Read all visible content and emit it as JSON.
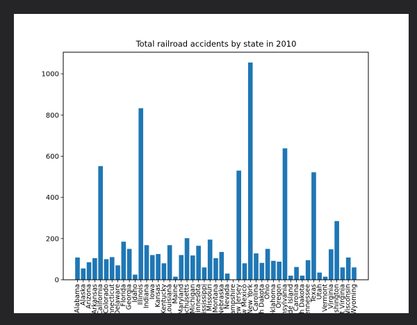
{
  "chart_data": {
    "type": "bar",
    "title": "Total railroad accidents by state in 2010",
    "xlabel": "",
    "ylabel": "",
    "ylim": [
      0,
      1105
    ],
    "yticks": [
      0,
      200,
      400,
      600,
      800,
      1000
    ],
    "grid": false,
    "bar_color": "#1f77b4",
    "categories": [
      "Alabama",
      "Alaska",
      "Arizona",
      "Arkansas",
      "California",
      "Colorado",
      "Connecticut",
      "Delaware",
      "Florida",
      "Georgia",
      "Idaho",
      "Illinois",
      "Indiana",
      "Iowa",
      "Kansas",
      "Kentucky",
      "Louisiana",
      "Maine",
      "Maryland",
      "Massachusetts",
      "Michigan",
      "Minnesota",
      "Mississippi",
      "Missouri",
      "Montana",
      "Nebraska",
      "Nevada",
      "New Hampshire",
      "New Jersey",
      "New Mexico",
      "New York",
      "North Carolina",
      "North Dakota",
      "Ohio",
      "Oklahoma",
      "Oregon",
      "Pennsylvania",
      "Rhode Island",
      "South Carolina",
      "South Dakota",
      "Tennessee",
      "Texas",
      "Utah",
      "Vermont",
      "Virginia",
      "Washington",
      "West Virginia",
      "Wisconsin",
      "Wyoming"
    ],
    "values": [
      108,
      55,
      85,
      105,
      552,
      100,
      110,
      70,
      185,
      150,
      25,
      833,
      168,
      120,
      125,
      80,
      168,
      15,
      120,
      202,
      118,
      165,
      60,
      195,
      105,
      135,
      30,
      0,
      530,
      80,
      1055,
      128,
      82,
      150,
      92,
      88,
      638,
      20,
      62,
      20,
      95,
      522,
      35,
      15,
      148,
      285,
      60,
      108,
      60
    ]
  }
}
